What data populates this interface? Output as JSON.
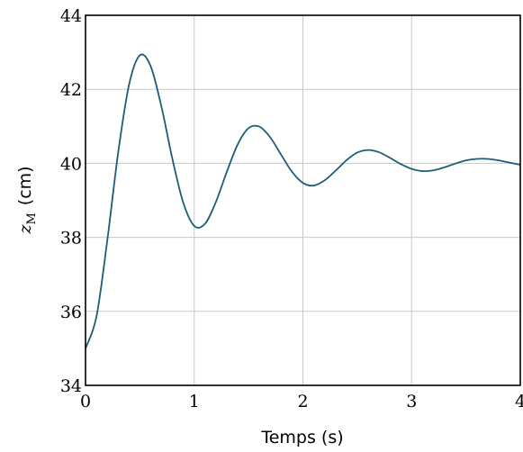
{
  "chart_data": {
    "type": "line",
    "xlabel": "Temps (s)",
    "ylabel": {
      "symbol": "z",
      "subscript": "M",
      "unit": "(cm)"
    },
    "x": [
      0,
      0.1,
      0.2,
      0.3,
      0.4,
      0.5,
      0.6,
      0.7,
      0.8,
      0.9,
      1.0,
      1.1,
      1.2,
      1.3,
      1.4,
      1.5,
      1.6,
      1.7,
      1.8,
      1.9,
      2.0,
      2.1,
      2.2,
      2.3,
      2.4,
      2.5,
      2.6,
      2.7,
      2.8,
      2.9,
      3.0,
      3.1,
      3.2,
      3.3,
      3.4,
      3.5,
      3.6,
      3.7,
      3.8,
      3.9,
      4.0
    ],
    "series": [
      {
        "color": "#1b5e75",
        "values": [
          35,
          35.85,
          37.91,
          40.28,
          42.12,
          42.92,
          42.62,
          41.51,
          40.11,
          38.93,
          38.31,
          38.37,
          38.96,
          39.77,
          40.51,
          40.95,
          40.99,
          40.7,
          40.23,
          39.77,
          39.47,
          39.4,
          39.54,
          39.8,
          40.08,
          40.29,
          40.36,
          40.3,
          40.15,
          39.98,
          39.85,
          39.79,
          39.81,
          39.89,
          39.99,
          40.08,
          40.12,
          40.12,
          40.08,
          40.02,
          39.96
        ]
      }
    ],
    "xlim": [
      0,
      4
    ],
    "xticks": [
      0,
      1,
      2,
      3,
      4
    ],
    "ylim": [
      34,
      44
    ],
    "yticks": [
      34,
      36,
      38,
      40,
      42,
      44
    ],
    "grid": true
  }
}
